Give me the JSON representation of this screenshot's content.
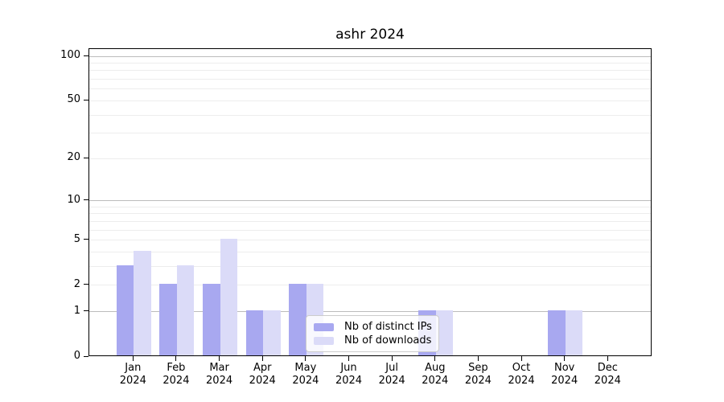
{
  "chart_data": {
    "type": "bar",
    "title": "ashr 2024",
    "year_label": "2024",
    "categories": [
      "Jan",
      "Feb",
      "Mar",
      "Apr",
      "May",
      "Jun",
      "Jul",
      "Aug",
      "Sep",
      "Oct",
      "Nov",
      "Dec"
    ],
    "series": [
      {
        "name": "Nb of distinct IPs",
        "color": "#a8a8f0",
        "values": [
          3,
          2,
          2,
          1,
          2,
          0,
          0,
          1,
          0,
          0,
          1,
          0
        ]
      },
      {
        "name": "Nb of downloads",
        "color": "#dbdbf8",
        "values": [
          4,
          3,
          5,
          1,
          2,
          0,
          0,
          1,
          0,
          0,
          1,
          0
        ]
      }
    ],
    "y_axis": {
      "scale": "log10(1+x)",
      "ticks": [
        0,
        1,
        2,
        5,
        10,
        20,
        50,
        100
      ],
      "max_value": 112,
      "minor_gridline_values": [
        3,
        4,
        6,
        7,
        8,
        9,
        30,
        40,
        60,
        70,
        80,
        90
      ],
      "decade_gridline_values": [
        1,
        10,
        100
      ]
    },
    "legend": {
      "position": "lower center inside plot",
      "entries": [
        "Nb of distinct IPs",
        "Nb of downloads"
      ]
    },
    "grid": true,
    "xlabel": "",
    "ylabel": ""
  },
  "colors": {
    "decade_gridline": "#bcbcbc",
    "minor_gridline": "#ededed",
    "axis": "#000000",
    "background": "#ffffff",
    "legend_border": "#cccccc"
  }
}
